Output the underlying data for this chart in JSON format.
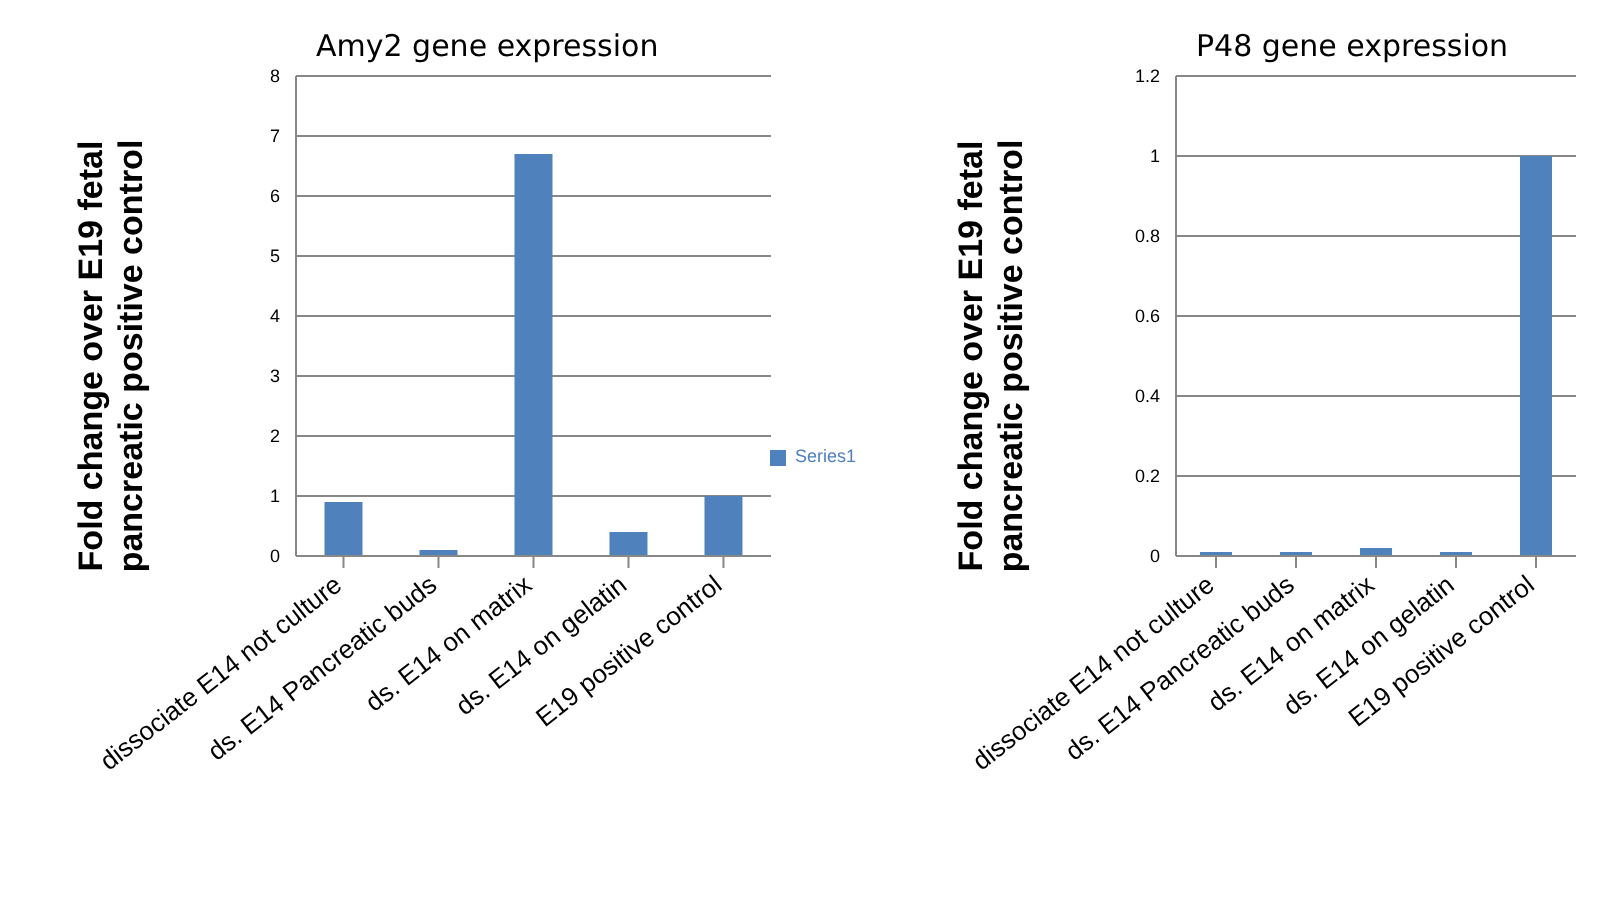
{
  "chart_data": [
    {
      "type": "bar",
      "title": "Amy2 gene expression",
      "ylabel": "Fold  change over E19 fetal pancreatic positive control",
      "categories": [
        "dissociate E14 not culture",
        "ds. E14 Pancreatic buds",
        "ds. E14 on matrix",
        "ds. E14 on gelatin",
        "E19 positive control"
      ],
      "series": [
        {
          "name": "Series1",
          "color": "#4f81bd",
          "values": [
            0.9,
            0.1,
            6.7,
            0.4,
            1.0
          ]
        }
      ],
      "ylim": [
        0,
        8
      ],
      "yticks": [
        0,
        1,
        2,
        3,
        4,
        5,
        6,
        7,
        8
      ],
      "grid": "y",
      "legend": "right"
    },
    {
      "type": "bar",
      "title": "P48 gene expression",
      "ylabel": "Fold change over E19 fetal pancreatic positive control",
      "categories": [
        "dissociate E14 not culture",
        "ds. E14 Pancreatic buds",
        "ds. E14 on matrix",
        "ds. E14 on gelatin",
        "E19 positive control"
      ],
      "series": [
        {
          "color": "#4f81bd",
          "values": [
            0.01,
            0.01,
            0.02,
            0.01,
            1.0
          ]
        }
      ],
      "ylim": [
        0,
        1.2
      ],
      "yticks": [
        0,
        0.2,
        0.4,
        0.6,
        0.8,
        1,
        1.2
      ],
      "grid": "y"
    }
  ]
}
